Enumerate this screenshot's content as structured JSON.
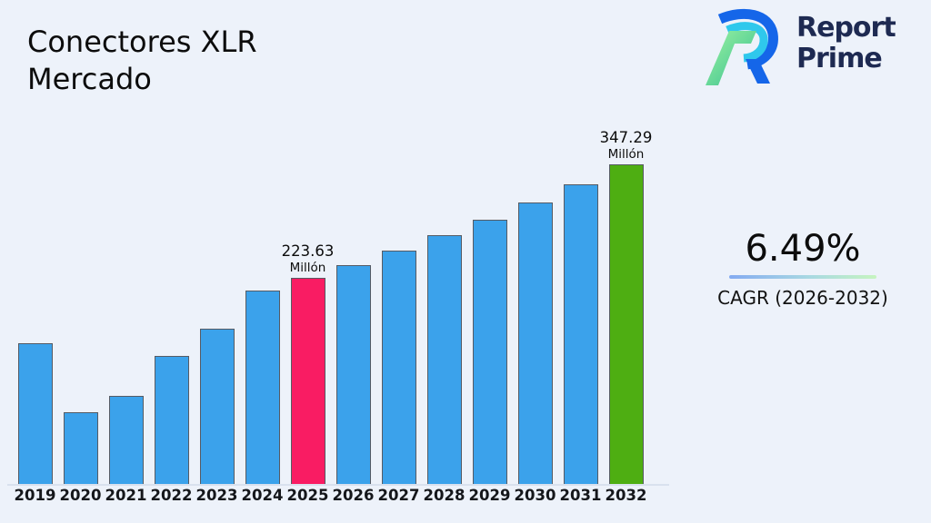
{
  "header": {
    "title_lines": [
      "Conectores XLR",
      "Mercado"
    ]
  },
  "logo": {
    "line1": "Report",
    "line2": "Prime",
    "text_color": "#1e2a52"
  },
  "kpi": {
    "value": "6.49%",
    "label": "CAGR (2026-2032)"
  },
  "chart_data": {
    "type": "bar",
    "title": "Conectores XLR Mercado",
    "unit": "Millón",
    "categories": [
      "2019",
      "2020",
      "2021",
      "2022",
      "2023",
      "2024",
      "2025",
      "2026",
      "2027",
      "2028",
      "2029",
      "2030",
      "2031",
      "2032"
    ],
    "values": [
      153,
      78,
      96,
      139,
      169,
      210,
      223.63,
      238.1,
      253.6,
      270.0,
      287.6,
      306.2,
      326.1,
      347.29
    ],
    "ylim": [
      0,
      380
    ],
    "grid": false,
    "legend": "none",
    "bar_color_default": "#3ba2eb",
    "bar_border_color": "#565b64",
    "highlights": [
      {
        "index": 6,
        "category": "2025",
        "color": "#f91c63",
        "label_lines": [
          "223.63",
          "Millón"
        ]
      },
      {
        "index": 13,
        "category": "2032",
        "color": "#4eae12",
        "label_lines": [
          "347.29",
          "Millón"
        ]
      }
    ]
  }
}
